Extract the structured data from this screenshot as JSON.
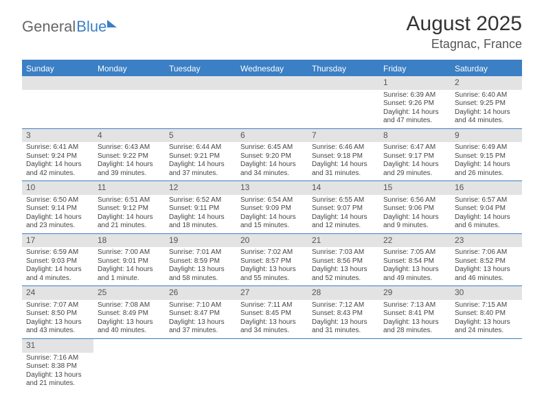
{
  "brand": {
    "part1": "General",
    "part2": "Blue"
  },
  "title": "August 2025",
  "location": "Etagnac, France",
  "colors": {
    "header_bg": "#3b7fc4",
    "header_text": "#ffffff",
    "daynum_bg": "#e3e3e3",
    "row_border": "#3b7fc4",
    "text": "#444444"
  },
  "day_headers": [
    "Sunday",
    "Monday",
    "Tuesday",
    "Wednesday",
    "Thursday",
    "Friday",
    "Saturday"
  ],
  "weeks": [
    [
      null,
      null,
      null,
      null,
      null,
      {
        "n": "1",
        "sr": "Sunrise: 6:39 AM",
        "ss": "Sunset: 9:26 PM",
        "d1": "Daylight: 14 hours",
        "d2": "and 47 minutes."
      },
      {
        "n": "2",
        "sr": "Sunrise: 6:40 AM",
        "ss": "Sunset: 9:25 PM",
        "d1": "Daylight: 14 hours",
        "d2": "and 44 minutes."
      }
    ],
    [
      {
        "n": "3",
        "sr": "Sunrise: 6:41 AM",
        "ss": "Sunset: 9:24 PM",
        "d1": "Daylight: 14 hours",
        "d2": "and 42 minutes."
      },
      {
        "n": "4",
        "sr": "Sunrise: 6:43 AM",
        "ss": "Sunset: 9:22 PM",
        "d1": "Daylight: 14 hours",
        "d2": "and 39 minutes."
      },
      {
        "n": "5",
        "sr": "Sunrise: 6:44 AM",
        "ss": "Sunset: 9:21 PM",
        "d1": "Daylight: 14 hours",
        "d2": "and 37 minutes."
      },
      {
        "n": "6",
        "sr": "Sunrise: 6:45 AM",
        "ss": "Sunset: 9:20 PM",
        "d1": "Daylight: 14 hours",
        "d2": "and 34 minutes."
      },
      {
        "n": "7",
        "sr": "Sunrise: 6:46 AM",
        "ss": "Sunset: 9:18 PM",
        "d1": "Daylight: 14 hours",
        "d2": "and 31 minutes."
      },
      {
        "n": "8",
        "sr": "Sunrise: 6:47 AM",
        "ss": "Sunset: 9:17 PM",
        "d1": "Daylight: 14 hours",
        "d2": "and 29 minutes."
      },
      {
        "n": "9",
        "sr": "Sunrise: 6:49 AM",
        "ss": "Sunset: 9:15 PM",
        "d1": "Daylight: 14 hours",
        "d2": "and 26 minutes."
      }
    ],
    [
      {
        "n": "10",
        "sr": "Sunrise: 6:50 AM",
        "ss": "Sunset: 9:14 PM",
        "d1": "Daylight: 14 hours",
        "d2": "and 23 minutes."
      },
      {
        "n": "11",
        "sr": "Sunrise: 6:51 AM",
        "ss": "Sunset: 9:12 PM",
        "d1": "Daylight: 14 hours",
        "d2": "and 21 minutes."
      },
      {
        "n": "12",
        "sr": "Sunrise: 6:52 AM",
        "ss": "Sunset: 9:11 PM",
        "d1": "Daylight: 14 hours",
        "d2": "and 18 minutes."
      },
      {
        "n": "13",
        "sr": "Sunrise: 6:54 AM",
        "ss": "Sunset: 9:09 PM",
        "d1": "Daylight: 14 hours",
        "d2": "and 15 minutes."
      },
      {
        "n": "14",
        "sr": "Sunrise: 6:55 AM",
        "ss": "Sunset: 9:07 PM",
        "d1": "Daylight: 14 hours",
        "d2": "and 12 minutes."
      },
      {
        "n": "15",
        "sr": "Sunrise: 6:56 AM",
        "ss": "Sunset: 9:06 PM",
        "d1": "Daylight: 14 hours",
        "d2": "and 9 minutes."
      },
      {
        "n": "16",
        "sr": "Sunrise: 6:57 AM",
        "ss": "Sunset: 9:04 PM",
        "d1": "Daylight: 14 hours",
        "d2": "and 6 minutes."
      }
    ],
    [
      {
        "n": "17",
        "sr": "Sunrise: 6:59 AM",
        "ss": "Sunset: 9:03 PM",
        "d1": "Daylight: 14 hours",
        "d2": "and 4 minutes."
      },
      {
        "n": "18",
        "sr": "Sunrise: 7:00 AM",
        "ss": "Sunset: 9:01 PM",
        "d1": "Daylight: 14 hours",
        "d2": "and 1 minute."
      },
      {
        "n": "19",
        "sr": "Sunrise: 7:01 AM",
        "ss": "Sunset: 8:59 PM",
        "d1": "Daylight: 13 hours",
        "d2": "and 58 minutes."
      },
      {
        "n": "20",
        "sr": "Sunrise: 7:02 AM",
        "ss": "Sunset: 8:57 PM",
        "d1": "Daylight: 13 hours",
        "d2": "and 55 minutes."
      },
      {
        "n": "21",
        "sr": "Sunrise: 7:03 AM",
        "ss": "Sunset: 8:56 PM",
        "d1": "Daylight: 13 hours",
        "d2": "and 52 minutes."
      },
      {
        "n": "22",
        "sr": "Sunrise: 7:05 AM",
        "ss": "Sunset: 8:54 PM",
        "d1": "Daylight: 13 hours",
        "d2": "and 49 minutes."
      },
      {
        "n": "23",
        "sr": "Sunrise: 7:06 AM",
        "ss": "Sunset: 8:52 PM",
        "d1": "Daylight: 13 hours",
        "d2": "and 46 minutes."
      }
    ],
    [
      {
        "n": "24",
        "sr": "Sunrise: 7:07 AM",
        "ss": "Sunset: 8:50 PM",
        "d1": "Daylight: 13 hours",
        "d2": "and 43 minutes."
      },
      {
        "n": "25",
        "sr": "Sunrise: 7:08 AM",
        "ss": "Sunset: 8:49 PM",
        "d1": "Daylight: 13 hours",
        "d2": "and 40 minutes."
      },
      {
        "n": "26",
        "sr": "Sunrise: 7:10 AM",
        "ss": "Sunset: 8:47 PM",
        "d1": "Daylight: 13 hours",
        "d2": "and 37 minutes."
      },
      {
        "n": "27",
        "sr": "Sunrise: 7:11 AM",
        "ss": "Sunset: 8:45 PM",
        "d1": "Daylight: 13 hours",
        "d2": "and 34 minutes."
      },
      {
        "n": "28",
        "sr": "Sunrise: 7:12 AM",
        "ss": "Sunset: 8:43 PM",
        "d1": "Daylight: 13 hours",
        "d2": "and 31 minutes."
      },
      {
        "n": "29",
        "sr": "Sunrise: 7:13 AM",
        "ss": "Sunset: 8:41 PM",
        "d1": "Daylight: 13 hours",
        "d2": "and 28 minutes."
      },
      {
        "n": "30",
        "sr": "Sunrise: 7:15 AM",
        "ss": "Sunset: 8:40 PM",
        "d1": "Daylight: 13 hours",
        "d2": "and 24 minutes."
      }
    ],
    [
      {
        "n": "31",
        "sr": "Sunrise: 7:16 AM",
        "ss": "Sunset: 8:38 PM",
        "d1": "Daylight: 13 hours",
        "d2": "and 21 minutes."
      },
      null,
      null,
      null,
      null,
      null,
      null
    ]
  ]
}
